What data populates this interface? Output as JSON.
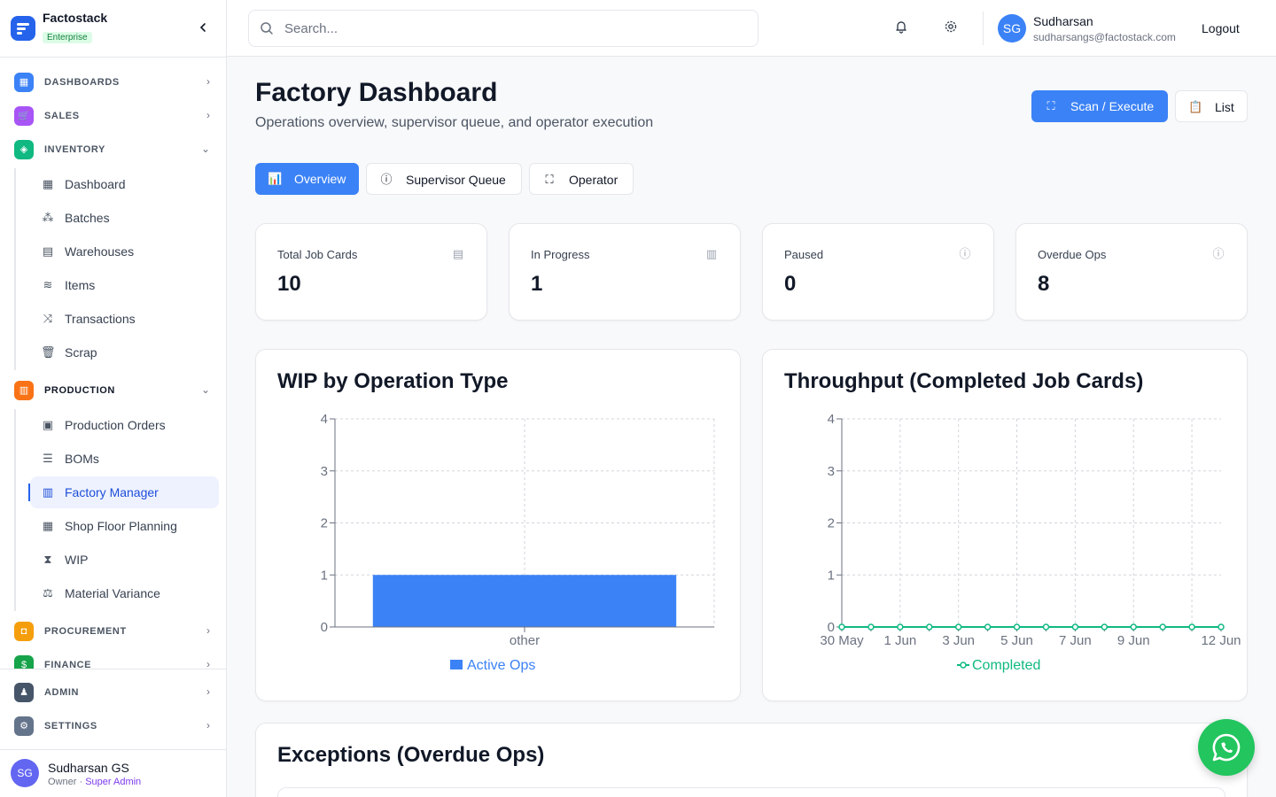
{
  "brand": {
    "name": "Factostack",
    "badge": "Enterprise"
  },
  "sidebar": {
    "groups": {
      "dashboards": "DASHBOARDS",
      "sales": "SALES",
      "inventory": "INVENTORY",
      "production": "PRODUCTION",
      "procurement": "PROCUREMENT",
      "finance": "FINANCE",
      "admin": "ADMIN",
      "settings": "SETTINGS"
    },
    "inventory_items": [
      "Dashboard",
      "Batches",
      "Warehouses",
      "Items",
      "Transactions",
      "Scrap"
    ],
    "production_items": [
      "Production Orders",
      "BOMs",
      "Factory Manager",
      "Shop Floor Planning",
      "WIP",
      "Material Variance"
    ],
    "active_item": "Factory Manager",
    "user": {
      "initials": "SG",
      "name": "Sudharsan GS",
      "role": "Owner",
      "role_sep": " · ",
      "role_extra": "Super Admin"
    }
  },
  "topbar": {
    "search_placeholder": "Search...",
    "user": {
      "initials": "SG",
      "name": "Sudharsan",
      "email": "sudharsangs@factostack.com"
    },
    "logout": "Logout"
  },
  "page": {
    "title": "Factory Dashboard",
    "subtitle": "Operations overview, supervisor queue, and operator execution",
    "actions": {
      "scan": "Scan / Execute",
      "list": "List"
    },
    "tabs": {
      "overview": "Overview",
      "supervisor": "Supervisor Queue",
      "operator": "Operator"
    },
    "active_tab": "Overview"
  },
  "stats": [
    {
      "label": "Total Job Cards",
      "value": "10",
      "icon": "clipboard-icon"
    },
    {
      "label": "In Progress",
      "value": "1",
      "icon": "bar-chart-icon"
    },
    {
      "label": "Paused",
      "value": "0",
      "icon": "alert-circle-icon"
    },
    {
      "label": "Overdue Ops",
      "value": "8",
      "icon": "alert-circle-icon"
    }
  ],
  "chart_data": [
    {
      "type": "bar",
      "title": "WIP by Operation Type",
      "categories": [
        "other"
      ],
      "series": [
        {
          "name": "Active Ops",
          "values": [
            1
          ]
        }
      ],
      "yticks": [
        "0",
        "1",
        "2",
        "3",
        "4"
      ],
      "ylim": [
        0,
        4
      ],
      "grid": true,
      "legend": "bottom",
      "color": "#3b82f6"
    },
    {
      "type": "line",
      "title": "Throughput (Completed Job Cards)",
      "x": [
        "30 May",
        "31 May",
        "1 Jun",
        "2 Jun",
        "3 Jun",
        "4 Jun",
        "5 Jun",
        "6 Jun",
        "7 Jun",
        "8 Jun",
        "9 Jun",
        "10 Jun",
        "11 Jun",
        "12 Jun"
      ],
      "xtick_labels": [
        "30 May",
        "1 Jun",
        "3 Jun",
        "5 Jun",
        "7 Jun",
        "9 Jun",
        "12 Jun"
      ],
      "series": [
        {
          "name": "Completed",
          "values": [
            0,
            0,
            0,
            0,
            0,
            0,
            0,
            0,
            0,
            0,
            0,
            0,
            0,
            0
          ]
        }
      ],
      "yticks": [
        "0",
        "1",
        "2",
        "3",
        "4"
      ],
      "ylim": [
        0,
        4
      ],
      "grid": true,
      "legend": "bottom",
      "color": "#10b981"
    }
  ],
  "exceptions": {
    "title": "Exceptions (Overdue Ops)"
  },
  "colors": {
    "primary": "#3b82f6",
    "success": "#10b981",
    "whatsapp": "#22c55e"
  }
}
